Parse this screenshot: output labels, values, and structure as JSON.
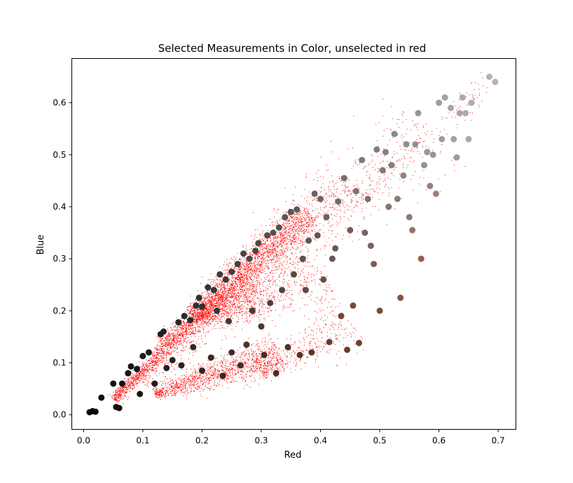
{
  "chart_data": {
    "type": "scatter",
    "title": "Selected Measurements in Color, unselected in red",
    "xlabel": "Red",
    "ylabel": "Blue",
    "xlim": [
      -0.02,
      0.73
    ],
    "ylim": [
      -0.028,
      0.685
    ],
    "xticks": [
      0.0,
      0.1,
      0.2,
      0.3,
      0.4,
      0.5,
      0.6,
      0.7
    ],
    "yticks": [
      0.0,
      0.1,
      0.2,
      0.3,
      0.4,
      0.5,
      0.6
    ],
    "xtick_labels": [
      "0.0",
      "0.1",
      "0.2",
      "0.3",
      "0.4",
      "0.5",
      "0.6",
      "0.7"
    ],
    "ytick_labels": [
      "0.0",
      "0.1",
      "0.2",
      "0.3",
      "0.4",
      "0.5",
      "0.6"
    ],
    "grid": false,
    "unselected_color": "#ff0000",
    "unselected_bands": [
      {
        "x0": 0.05,
        "y0": 0.03,
        "x1": 0.38,
        "y1": 0.39,
        "spread": 0.012,
        "count": 3000
      },
      {
        "x0": 0.13,
        "y0": 0.14,
        "x1": 0.45,
        "y1": 0.45,
        "spread": 0.018,
        "count": 900
      },
      {
        "x0": 0.1,
        "y0": 0.06,
        "x1": 0.58,
        "y1": 0.55,
        "spread": 0.03,
        "count": 900
      },
      {
        "x0": 0.18,
        "y0": 0.19,
        "x1": 0.29,
        "y1": 0.25,
        "spread": 0.022,
        "count": 900
      },
      {
        "x0": 0.12,
        "y0": 0.04,
        "x1": 0.33,
        "y1": 0.12,
        "spread": 0.015,
        "count": 1400
      },
      {
        "x0": 0.2,
        "y0": 0.18,
        "x1": 0.4,
        "y1": 0.28,
        "spread": 0.025,
        "count": 600
      },
      {
        "x0": 0.3,
        "y0": 0.08,
        "x1": 0.45,
        "y1": 0.18,
        "spread": 0.02,
        "count": 400
      },
      {
        "x0": 0.45,
        "y0": 0.4,
        "x1": 0.69,
        "y1": 0.64,
        "spread": 0.01,
        "count": 120
      }
    ],
    "selected_points": [
      [
        0.01,
        0.005,
        "#0b0a0a"
      ],
      [
        0.015,
        0.007,
        "#0b0a0a"
      ],
      [
        0.02,
        0.006,
        "#0d0c0c"
      ],
      [
        0.03,
        0.033,
        "#0f0e0e"
      ],
      [
        0.05,
        0.06,
        "#121111"
      ],
      [
        0.055,
        0.015,
        "#110f0f"
      ],
      [
        0.06,
        0.013,
        "#121010"
      ],
      [
        0.065,
        0.06,
        "#141313"
      ],
      [
        0.075,
        0.08,
        "#161414"
      ],
      [
        0.08,
        0.093,
        "#181616"
      ],
      [
        0.09,
        0.088,
        "#1a1818"
      ],
      [
        0.095,
        0.04,
        "#161414"
      ],
      [
        0.1,
        0.113,
        "#1c1a1a"
      ],
      [
        0.11,
        0.12,
        "#1e1c1c"
      ],
      [
        0.12,
        0.06,
        "#1e1a1a"
      ],
      [
        0.13,
        0.155,
        "#222020"
      ],
      [
        0.135,
        0.16,
        "#232121"
      ],
      [
        0.14,
        0.09,
        "#261f1e"
      ],
      [
        0.15,
        0.105,
        "#282322"
      ],
      [
        0.16,
        0.178,
        "#262525"
      ],
      [
        0.165,
        0.095,
        "#2a2422"
      ],
      [
        0.17,
        0.19,
        "#2a2929"
      ],
      [
        0.18,
        0.182,
        "#2b2a2a"
      ],
      [
        0.185,
        0.13,
        "#2f2725"
      ],
      [
        0.19,
        0.21,
        "#2e2e2e"
      ],
      [
        0.195,
        0.225,
        "#303030"
      ],
      [
        0.2,
        0.208,
        "#303030"
      ],
      [
        0.2,
        0.085,
        "#33241f"
      ],
      [
        0.21,
        0.245,
        "#343434"
      ],
      [
        0.215,
        0.11,
        "#362a26"
      ],
      [
        0.22,
        0.24,
        "#363636"
      ],
      [
        0.225,
        0.2,
        "#383636"
      ],
      [
        0.23,
        0.27,
        "#3a3a3a"
      ],
      [
        0.235,
        0.075,
        "#3a2520"
      ],
      [
        0.24,
        0.26,
        "#3b3b3b"
      ],
      [
        0.245,
        0.18,
        "#3d3734"
      ],
      [
        0.25,
        0.275,
        "#3e3e3e"
      ],
      [
        0.25,
        0.12,
        "#3f2c26"
      ],
      [
        0.26,
        0.29,
        "#414141"
      ],
      [
        0.265,
        0.095,
        "#422a24"
      ],
      [
        0.27,
        0.31,
        "#444444"
      ],
      [
        0.275,
        0.135,
        "#453029"
      ],
      [
        0.28,
        0.3,
        "#464646"
      ],
      [
        0.285,
        0.2,
        "#473a35"
      ],
      [
        0.29,
        0.315,
        "#484848"
      ],
      [
        0.295,
        0.33,
        "#4a4a4a"
      ],
      [
        0.3,
        0.17,
        "#4b3a33"
      ],
      [
        0.305,
        0.115,
        "#4b2d25"
      ],
      [
        0.31,
        0.345,
        "#4d4d4d"
      ],
      [
        0.315,
        0.215,
        "#4d403b"
      ],
      [
        0.32,
        0.35,
        "#505050"
      ],
      [
        0.325,
        0.08,
        "#4f2b21"
      ],
      [
        0.33,
        0.36,
        "#525252"
      ],
      [
        0.335,
        0.24,
        "#524440"
      ],
      [
        0.34,
        0.38,
        "#555555"
      ],
      [
        0.345,
        0.13,
        "#553228"
      ],
      [
        0.35,
        0.39,
        "#575757"
      ],
      [
        0.355,
        0.27,
        "#58493f"
      ],
      [
        0.36,
        0.395,
        "#5a5a5a"
      ],
      [
        0.365,
        0.115,
        "#5a3226"
      ],
      [
        0.37,
        0.3,
        "#5d4e44"
      ],
      [
        0.375,
        0.24,
        "#5d4a42"
      ],
      [
        0.38,
        0.335,
        "#5f5550"
      ],
      [
        0.385,
        0.12,
        "#603427"
      ],
      [
        0.39,
        0.425,
        "#646464"
      ],
      [
        0.395,
        0.345,
        "#62554f"
      ],
      [
        0.4,
        0.415,
        "#666666"
      ],
      [
        0.405,
        0.26,
        "#66504a"
      ],
      [
        0.41,
        0.38,
        "#686060"
      ],
      [
        0.415,
        0.14,
        "#683a2b"
      ],
      [
        0.42,
        0.3,
        "#6a5650"
      ],
      [
        0.425,
        0.32,
        "#6b5a52"
      ],
      [
        0.43,
        0.41,
        "#6e6a68"
      ],
      [
        0.435,
        0.19,
        "#6e4636"
      ],
      [
        0.44,
        0.455,
        "#707070"
      ],
      [
        0.445,
        0.125,
        "#6f3a2a"
      ],
      [
        0.45,
        0.355,
        "#725e57"
      ],
      [
        0.455,
        0.21,
        "#734a3d"
      ],
      [
        0.46,
        0.43,
        "#767372"
      ],
      [
        0.465,
        0.138,
        "#753e2d"
      ],
      [
        0.47,
        0.49,
        "#7a7a7a"
      ],
      [
        0.475,
        0.35,
        "#776360"
      ],
      [
        0.48,
        0.415,
        "#7a706c"
      ],
      [
        0.485,
        0.325,
        "#7a6560"
      ],
      [
        0.49,
        0.29,
        "#7c5f55"
      ],
      [
        0.495,
        0.51,
        "#7e7e7e"
      ],
      [
        0.5,
        0.2,
        "#7c4c3c"
      ],
      [
        0.505,
        0.47,
        "#807876"
      ],
      [
        0.51,
        0.505,
        "#828282"
      ],
      [
        0.515,
        0.4,
        "#84756f"
      ],
      [
        0.52,
        0.48,
        "#858080"
      ],
      [
        0.525,
        0.54,
        "#888888"
      ],
      [
        0.53,
        0.415,
        "#887a76"
      ],
      [
        0.535,
        0.225,
        "#87533f"
      ],
      [
        0.54,
        0.46,
        "#8b8480"
      ],
      [
        0.545,
        0.52,
        "#8e8e8e"
      ],
      [
        0.55,
        0.38,
        "#8c7a72"
      ],
      [
        0.555,
        0.355,
        "#8e756c"
      ],
      [
        0.56,
        0.52,
        "#919191"
      ],
      [
        0.565,
        0.58,
        "#949494"
      ],
      [
        0.57,
        0.3,
        "#935e4e"
      ],
      [
        0.575,
        0.48,
        "#969090"
      ],
      [
        0.58,
        0.505,
        "#989898"
      ],
      [
        0.585,
        0.44,
        "#997f77"
      ],
      [
        0.59,
        0.5,
        "#9a9090"
      ],
      [
        0.595,
        0.425,
        "#9d7e76"
      ],
      [
        0.6,
        0.6,
        "#9e9e9e"
      ],
      [
        0.605,
        0.53,
        "#a09c9a"
      ],
      [
        0.61,
        0.61,
        "#a2a2a2"
      ],
      [
        0.62,
        0.59,
        "#a5a5a5"
      ],
      [
        0.625,
        0.53,
        "#a6a09e"
      ],
      [
        0.63,
        0.495,
        "#a89a92"
      ],
      [
        0.635,
        0.58,
        "#a8a8a8"
      ],
      [
        0.64,
        0.61,
        "#aaaaaa"
      ],
      [
        0.645,
        0.58,
        "#ababab"
      ],
      [
        0.65,
        0.53,
        "#aca6a4"
      ],
      [
        0.655,
        0.6,
        "#aeaeae"
      ],
      [
        0.685,
        0.65,
        "#b4b4b4"
      ],
      [
        0.695,
        0.64,
        "#b6b3b0"
      ]
    ]
  }
}
